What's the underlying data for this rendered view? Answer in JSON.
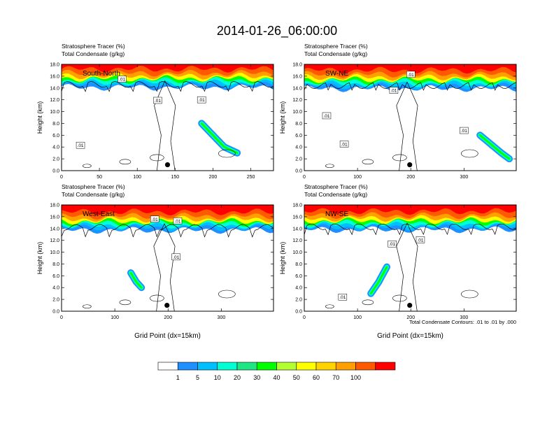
{
  "title": "2014-01-26_06:00:00",
  "colorbar": {
    "labels": [
      "1",
      "5",
      "10",
      "20",
      "30",
      "40",
      "50",
      "60",
      "70",
      "100"
    ],
    "colors": [
      "#ffffff",
      "#1e90ff",
      "#00bfff",
      "#00ffd2",
      "#1ee682",
      "#00ff00",
      "#b4ff32",
      "#ffff00",
      "#ffd200",
      "#ffa000",
      "#ff5a00",
      "#ff0000"
    ]
  },
  "footnote": "Total Condensate Contours: .01 to .01 by .000",
  "chart_data": [
    {
      "type": "contour",
      "panel_label": "South-North",
      "title_line1": "Stratosphere Tracer   (%)",
      "title_line2": "Total Condensate   (g/kg)",
      "ylabel": "Height (km)",
      "xlabel": "",
      "xlim": [
        0,
        280
      ],
      "ylim": [
        0,
        18
      ],
      "xticks": [
        "0",
        "50",
        "100",
        "150",
        "200",
        "250"
      ],
      "xtick_values": [
        0,
        50,
        100,
        150,
        200,
        250
      ],
      "yticks": [
        "0.0",
        "2.0",
        "4.0",
        "6.0",
        "8.0",
        "10.0",
        "12.0",
        "14.0",
        "16.0",
        "18.0"
      ],
      "contour_labels": [
        ".01",
        ".01",
        ".01",
        ".01"
      ],
      "contour_label_x": [
        80,
        127,
        185,
        25
      ],
      "contour_label_y": [
        15.5,
        11.9,
        12.0,
        4.3
      ],
      "marker": {
        "x": 140,
        "y": 1.0
      },
      "tracer_top_km": 15.2,
      "tracer_plume": [
        [
          185,
          8
        ],
        [
          200,
          6
        ],
        [
          215,
          4
        ],
        [
          232,
          3
        ]
      ]
    },
    {
      "type": "contour",
      "panel_label": "SW-NE",
      "title_line1": "Stratosphere Tracer   (%)",
      "title_line2": "Total Condensate   (g/kg)",
      "ylabel": "Height (km)",
      "xlabel": "",
      "xlim": [
        0,
        398
      ],
      "ylim": [
        0,
        18
      ],
      "xticks": [
        "0",
        "100",
        "200",
        "300"
      ],
      "xtick_values": [
        0,
        100,
        200,
        300
      ],
      "yticks": [
        "0.0",
        "2.0",
        "4.0",
        "6.0",
        "8.0",
        "10.0",
        "12.0",
        "14.0",
        "16.0",
        "18.0"
      ],
      "contour_labels": [
        ".01",
        ".01",
        ".01",
        ".01",
        ".01"
      ],
      "contour_label_x": [
        200,
        168,
        42,
        300,
        75
      ],
      "contour_label_y": [
        16.3,
        13.6,
        9.3,
        6.8,
        4.5
      ],
      "marker": {
        "x": 198,
        "y": 1.0
      },
      "tracer_top_km": 15.0,
      "tracer_plume": [
        [
          330,
          6
        ],
        [
          350,
          4.5
        ],
        [
          370,
          3
        ],
        [
          385,
          2
        ]
      ]
    },
    {
      "type": "contour",
      "panel_label": "West-East",
      "title_line1": "Stratosphere Tracer   (%)",
      "title_line2": "Total Condensate   (g/kg)",
      "ylabel": "Height (km)",
      "xlabel": "Grid Point (dx=15km)",
      "xlim": [
        0,
        398
      ],
      "ylim": [
        0,
        18
      ],
      "xticks": [
        "0",
        "100",
        "200",
        "300"
      ],
      "xtick_values": [
        0,
        100,
        200,
        300
      ],
      "yticks": [
        "0.0",
        "2.0",
        "4.0",
        "6.0",
        "8.0",
        "10.0",
        "12.0",
        "14.0",
        "16.0",
        "18.0"
      ],
      "contour_labels": [
        ".01",
        ".01",
        ".01"
      ],
      "contour_label_x": [
        175,
        218,
        215
      ],
      "contour_label_y": [
        15.6,
        15.3,
        9.2
      ],
      "marker": {
        "x": 198,
        "y": 1.0
      },
      "tracer_top_km": 14.8,
      "tracer_plume": [
        [
          130,
          6.5
        ],
        [
          140,
          5
        ],
        [
          150,
          4
        ]
      ]
    },
    {
      "type": "contour",
      "panel_label": "NW-SE",
      "title_line1": "Stratosphere Tracer   (%)",
      "title_line2": "Total Condensate   (g/kg)",
      "ylabel": "Height (km)",
      "xlabel": "Grid Point (dx=15km)",
      "xlim": [
        0,
        398
      ],
      "ylim": [
        0,
        18
      ],
      "xticks": [
        "0",
        "100",
        "200",
        "300"
      ],
      "xtick_values": [
        0,
        100,
        200,
        300
      ],
      "yticks": [
        "0.0",
        "2.0",
        "4.0",
        "6.0",
        "8.0",
        "10.0",
        "12.0",
        "14.0",
        "16.0",
        "18.0"
      ],
      "contour_labels": [
        ".01",
        ".01",
        ".01"
      ],
      "contour_label_x": [
        165,
        218,
        72
      ],
      "contour_label_y": [
        11.4,
        12.1,
        2.4
      ],
      "marker": {
        "x": 198,
        "y": 1.0
      },
      "tracer_top_km": 14.9,
      "tracer_plume": [
        [
          155,
          7.5
        ],
        [
          140,
          5
        ],
        [
          125,
          3
        ]
      ]
    }
  ]
}
